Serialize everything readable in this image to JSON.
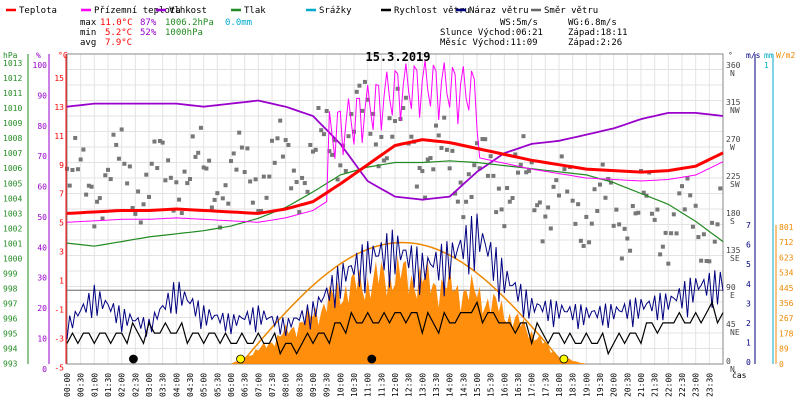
{
  "chart_data": {
    "type": "line",
    "title": "15.3.2019",
    "legend": [
      {
        "name": "Teplota",
        "color": "#ff0000"
      },
      {
        "name": "Přízemní teplota",
        "color": "#ff00ff"
      },
      {
        "name": "Vlhkost",
        "color": "#9900cc"
      },
      {
        "name": "Tlak",
        "color": "#228b22"
      },
      {
        "name": "Srážky",
        "color": "#00aacc"
      },
      {
        "name": "Rychlost větru",
        "color": "#000000"
      },
      {
        "name": "Náraz větru",
        "color": "#000080"
      },
      {
        "name": "Směr větru",
        "color": "#666666"
      }
    ],
    "stats": {
      "max_label": "max",
      "min_label": "min",
      "avg_label": "avg",
      "max_temp": "11.0°C",
      "max_hum": "87%",
      "max_press": "1006.2hPa",
      "max_rain": "0.0mm",
      "min_temp": "5.2°C",
      "min_hum": "52%",
      "min_press": "1000hPa",
      "avg_temp": "7.9°C",
      "ws": "WS:5m/s",
      "wg": "WG:6.8m/s",
      "sun": "Slunce Východ:06:21",
      "sun_set": "Západ:18:11",
      "moon": "Měsíc  Východ:11:09",
      "moon_set": "Západ:2:26"
    },
    "axes": {
      "hpa_unit": "hPa",
      "pct_unit": "%",
      "c_unit": "°C",
      "dir_unit": "°",
      "ms_unit": "m/s",
      "mm_unit": "mm",
      "wm2_unit": "W/m2",
      "time_label": "čas",
      "hpa_ticks": [
        "1013",
        "1012",
        "1011",
        "1010",
        "1009",
        "1008",
        "1007",
        "1006",
        "1005",
        "1004",
        "1003",
        "1002",
        "1001",
        "1000",
        "999",
        "998",
        "997",
        "996",
        "995",
        "994",
        "993"
      ],
      "pct_ticks": [
        "100",
        "90",
        "80",
        "70",
        "60",
        "50",
        "40",
        "30",
        "20",
        "10",
        "0"
      ],
      "temp_ticks": [
        "15",
        "13",
        "11",
        "9",
        "7",
        "5",
        "3",
        "1",
        "-1",
        "-3",
        "-5"
      ],
      "dir_ticks": [
        {
          "deg": "360",
          "dir": "N"
        },
        {
          "deg": "315",
          "dir": "NW"
        },
        {
          "deg": "270",
          "dir": "W"
        },
        {
          "deg": "225",
          "dir": "SW"
        },
        {
          "deg": "180",
          "dir": "S"
        },
        {
          "deg": "135",
          "dir": "SE"
        },
        {
          "deg": "90",
          "dir": "E"
        },
        {
          "deg": "45",
          "dir": "NE"
        },
        {
          "deg": "0",
          "dir": "N"
        }
      ],
      "ms_ticks": [
        "7",
        "6",
        "5",
        "4",
        "3",
        "2",
        "1",
        "0"
      ],
      "mm_ticks": [
        "1"
      ],
      "rad_ticks": [
        "801",
        "712",
        "623",
        "534",
        "445",
        "356",
        "267",
        "178",
        "89",
        "0"
      ],
      "time_ticks": [
        "00:00",
        "00:30",
        "01:00",
        "01:30",
        "02:00",
        "02:30",
        "03:00",
        "03:30",
        "04:00",
        "04:30",
        "05:00",
        "05:30",
        "06:00",
        "06:30",
        "07:00",
        "07:30",
        "08:00",
        "08:30",
        "09:00",
        "09:30",
        "10:00",
        "10:30",
        "11:00",
        "11:30",
        "12:00",
        "12:30",
        "13:00",
        "13:30",
        "14:00",
        "14:30",
        "15:00",
        "15:30",
        "16:00",
        "16:30",
        "17:00",
        "17:30",
        "18:00",
        "18:30",
        "19:00",
        "19:30",
        "20:00",
        "20:30",
        "21:00",
        "21:30",
        "22:00",
        "22:30",
        "23:00",
        "23:30"
      ]
    },
    "hours": [
      0,
      1,
      2,
      3,
      4,
      5,
      6,
      7,
      8,
      9,
      10,
      11,
      12,
      13,
      14,
      15,
      16,
      17,
      18,
      19,
      20,
      21,
      22,
      23,
      24
    ],
    "temperature_c": [
      5.2,
      5.3,
      5.4,
      5.4,
      5.5,
      5.4,
      5.3,
      5.2,
      5.5,
      6.0,
      7.2,
      8.5,
      9.8,
      10.2,
      10.0,
      9.6,
      9.2,
      8.8,
      8.5,
      8.2,
      8.1,
      8.0,
      8.1,
      8.4,
      9.3
    ],
    "humidity_pct": [
      83,
      84,
      84,
      84,
      84,
      83,
      84,
      85,
      83,
      80,
      71,
      59,
      54,
      53,
      54,
      62,
      68,
      71,
      72,
      74,
      76,
      79,
      81,
      81,
      80
    ],
    "pressure_hpa": [
      1000.8,
      1000.6,
      1000.9,
      1001.2,
      1001.4,
      1001.6,
      1001.9,
      1002.4,
      1003.1,
      1004.1,
      1005.2,
      1005.7,
      1006.0,
      1006.0,
      1006.1,
      1006.0,
      1005.8,
      1005.6,
      1005.4,
      1005.2,
      1004.7,
      1004.0,
      1003.3,
      1002.2,
      1000.9
    ],
    "solar_radiation_wm2": [
      0,
      0,
      0,
      0,
      0,
      0,
      0,
      80,
      180,
      280,
      420,
      470,
      520,
      480,
      440,
      400,
      300,
      180,
      40,
      0,
      0,
      0,
      0,
      0,
      0
    ],
    "solar_theoretical_peak_wm2": 700,
    "wind_speed_ms": [
      1.1,
      1.2,
      1.3,
      1.5,
      1.6,
      1.4,
      1.2,
      1.1,
      0.8,
      1.2,
      1.8,
      2.2,
      2.4,
      2.0,
      2.2,
      2.6,
      2.0,
      1.6,
      1.3,
      1.2,
      1.0,
      1.5,
      2.0,
      2.3,
      2.5
    ],
    "wind_gust_ms": [
      2.0,
      3.5,
      2.5,
      2.0,
      3.8,
      2.6,
      2.2,
      2.6,
      2.0,
      2.8,
      4.5,
      5.5,
      6.0,
      5.0,
      5.5,
      6.8,
      4.5,
      3.0,
      2.8,
      2.6,
      2.7,
      3.0,
      3.2,
      4.0,
      4.2
    ],
    "wind_dir_deg": [
      230,
      240,
      250,
      235,
      255,
      245,
      240,
      250,
      260,
      265,
      300,
      320,
      305,
      280,
      255,
      245,
      240,
      230,
      215,
      205,
      200,
      195,
      190,
      185,
      180
    ],
    "rain_mm": [
      0,
      0,
      0,
      0,
      0,
      0,
      0,
      0,
      0,
      0,
      0,
      0,
      0,
      0,
      0,
      0,
      0,
      0,
      0,
      0,
      0,
      0,
      0,
      0,
      0
    ],
    "sun_events": [
      {
        "hour": 6.35,
        "type": "sunrise"
      },
      {
        "hour": 18.18,
        "type": "sunset"
      }
    ],
    "moon_events": [
      {
        "hour": 2.43,
        "type": "moonset"
      },
      {
        "hour": 11.15,
        "type": "moonrise"
      }
    ]
  }
}
